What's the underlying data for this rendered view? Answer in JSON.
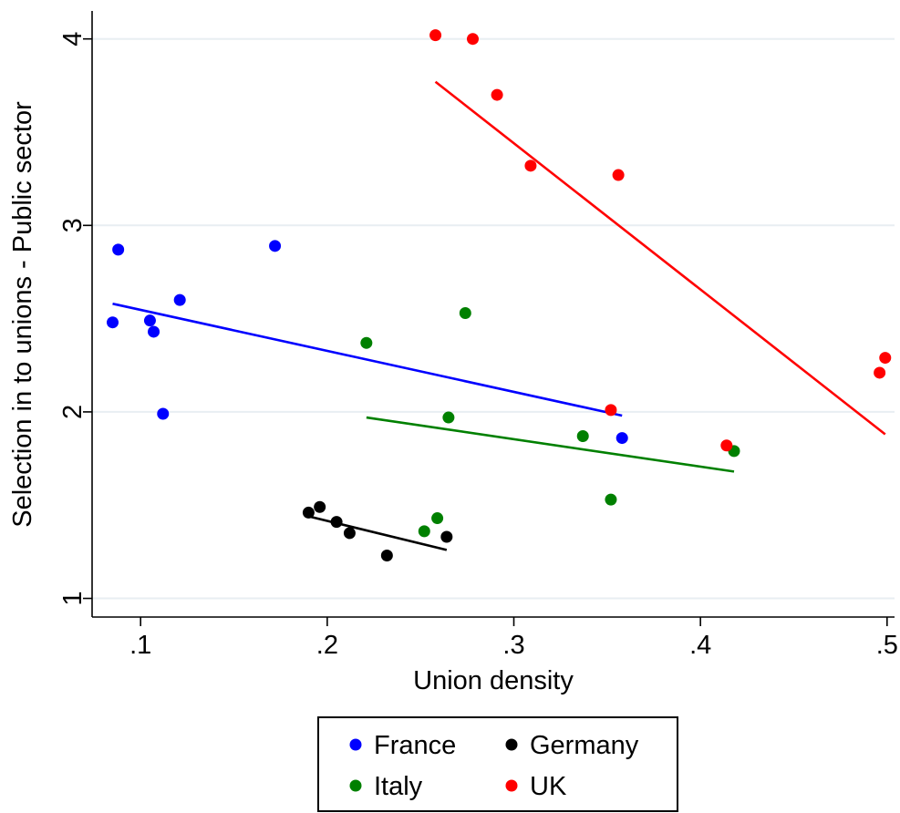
{
  "chart_data": {
    "type": "scatter",
    "xlabel": "Union density",
    "ylabel": "Selection in to unions - Public sector",
    "xlim": [
      0.074,
      0.504
    ],
    "ylim": [
      0.9,
      4.15
    ],
    "x_ticks": [
      0.1,
      0.2,
      0.3,
      0.4,
      0.5
    ],
    "x_tick_labels": [
      ".1",
      ".2",
      ".3",
      ".4",
      ".5"
    ],
    "y_ticks": [
      1,
      2,
      3,
      4
    ],
    "y_tick_labels": [
      "1",
      "2",
      "3",
      "4"
    ],
    "grid": true,
    "legend": {
      "placement": "bottom-center",
      "columns": 2
    },
    "series": [
      {
        "name": "France",
        "color": "#0000ff",
        "points": [
          [
            0.085,
            2.48
          ],
          [
            0.088,
            2.87
          ],
          [
            0.105,
            2.49
          ],
          [
            0.107,
            2.43
          ],
          [
            0.112,
            1.99
          ],
          [
            0.121,
            2.6
          ],
          [
            0.172,
            2.89
          ],
          [
            0.358,
            1.86
          ]
        ],
        "fit": [
          [
            0.085,
            2.58
          ],
          [
            0.358,
            1.98
          ]
        ]
      },
      {
        "name": "Germany",
        "color": "#000000",
        "points": [
          [
            0.19,
            1.46
          ],
          [
            0.196,
            1.49
          ],
          [
            0.205,
            1.41
          ],
          [
            0.212,
            1.35
          ],
          [
            0.232,
            1.23
          ],
          [
            0.264,
            1.33
          ]
        ],
        "fit": [
          [
            0.19,
            1.44
          ],
          [
            0.264,
            1.26
          ]
        ]
      },
      {
        "name": "Italy",
        "color": "#008000",
        "points": [
          [
            0.221,
            2.37
          ],
          [
            0.252,
            1.36
          ],
          [
            0.259,
            1.43
          ],
          [
            0.265,
            1.97
          ],
          [
            0.274,
            2.53
          ],
          [
            0.337,
            1.87
          ],
          [
            0.352,
            1.53
          ],
          [
            0.418,
            1.79
          ]
        ],
        "fit": [
          [
            0.221,
            1.97
          ],
          [
            0.418,
            1.68
          ]
        ]
      },
      {
        "name": "UK",
        "color": "#ff0000",
        "points": [
          [
            0.258,
            4.02
          ],
          [
            0.278,
            4.0
          ],
          [
            0.291,
            3.7
          ],
          [
            0.309,
            3.32
          ],
          [
            0.352,
            2.01
          ],
          [
            0.356,
            3.27
          ],
          [
            0.414,
            1.82
          ],
          [
            0.496,
            2.21
          ],
          [
            0.499,
            2.29
          ]
        ],
        "fit": [
          [
            0.258,
            3.77
          ],
          [
            0.499,
            1.88
          ]
        ]
      }
    ]
  }
}
